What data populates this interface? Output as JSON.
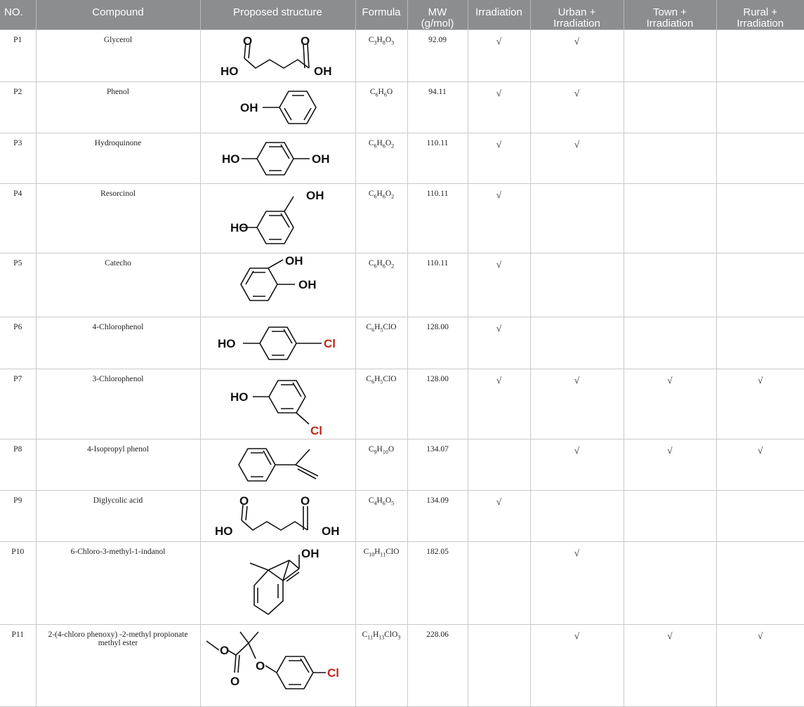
{
  "table": {
    "headers": [
      "NO.",
      "Compound",
      "Proposed structure",
      "Formula",
      "MW\n(g/mol)",
      "Irradiation",
      "Urban +\nIrradiation",
      "Town +\nIrradiation",
      "Rural +\nIrradiation"
    ],
    "check_symbol": "√",
    "rows": [
      {
        "no": "P1",
        "compound": "Glycerol",
        "formula": "C3H8O3",
        "formula_html": "C<sub>3</sub>H<sub>8</sub>O<sub>3</sub>",
        "mw": "92.09",
        "irr": "√",
        "urban": "√",
        "town": "",
        "rural": "",
        "structure_labels": [
          "O",
          "O",
          "HO",
          "OH"
        ]
      },
      {
        "no": "P2",
        "compound": "Phenol",
        "formula": "C6H6O",
        "mw": "94.11",
        "irr": "√",
        "urban": "√",
        "town": "",
        "rural": "",
        "structure_labels": [
          "OH"
        ]
      },
      {
        "no": "P3",
        "compound": "Hydroquinone",
        "formula": "C6H6O2",
        "mw": "110.11",
        "irr": "√",
        "urban": "√",
        "town": "",
        "rural": "",
        "structure_labels": [
          "HO",
          "OH"
        ]
      },
      {
        "no": "P4",
        "compound": "Resorcinol",
        "formula": "C6H6O2",
        "mw": "110.11",
        "irr": "√",
        "urban": "",
        "town": "",
        "rural": "",
        "structure_labels": [
          "OH",
          "HO"
        ]
      },
      {
        "no": "P5",
        "compound": "Catecho",
        "formula": "C6H6O2",
        "mw": "110.11",
        "irr": "√",
        "urban": "",
        "town": "",
        "rural": "",
        "structure_labels": [
          "OH",
          "OH"
        ]
      },
      {
        "no": "P6",
        "compound": "4-Chlorophenol",
        "formula": "C6H5ClO",
        "mw": "128.00",
        "irr": "√",
        "urban": "",
        "town": "",
        "rural": "",
        "structure_labels": [
          "HO",
          "Cl"
        ]
      },
      {
        "no": "P7",
        "compound": "3-Chlorophenol",
        "formula": "C6H5ClO",
        "mw": "128.00",
        "irr": "√",
        "urban": "√",
        "town": "√",
        "rural": "√",
        "structure_labels": [
          "HO",
          "Cl"
        ]
      },
      {
        "no": "P8",
        "compound": "4-Isopropyl phenol",
        "formula": "C9H10O",
        "mw": "134.07",
        "irr": "",
        "urban": "√",
        "town": "√",
        "rural": "√",
        "structure_labels": []
      },
      {
        "no": "P9",
        "compound": "Diglycolic acid",
        "formula": "C4H6O5",
        "mw": "134.09",
        "irr": "√",
        "urban": "",
        "town": "",
        "rural": "",
        "structure_labels": [
          "O",
          "O",
          "HO",
          "OH"
        ]
      },
      {
        "no": "P10",
        "compound": "6-Chloro-3-methyl-1-indanol",
        "formula": "C10H11ClO",
        "mw": "182.05",
        "irr": "",
        "urban": "√",
        "town": "",
        "rural": "",
        "structure_labels": [
          "OH"
        ]
      },
      {
        "no": "P11",
        "compound": "2-(4-chloro phenoxy) -2-methyl propionate methyl ester",
        "formula": "C11H13ClO3",
        "mw": "228.06",
        "irr": "",
        "urban": "√",
        "town": "√",
        "rural": "√",
        "structure_labels": [
          "O",
          "O",
          "Cl"
        ]
      }
    ]
  },
  "colors": {
    "header_bg": "#8b8d8f",
    "header_text": "#ffffff",
    "chlorine": "#c0281b",
    "grid": "#c9c9c9"
  }
}
